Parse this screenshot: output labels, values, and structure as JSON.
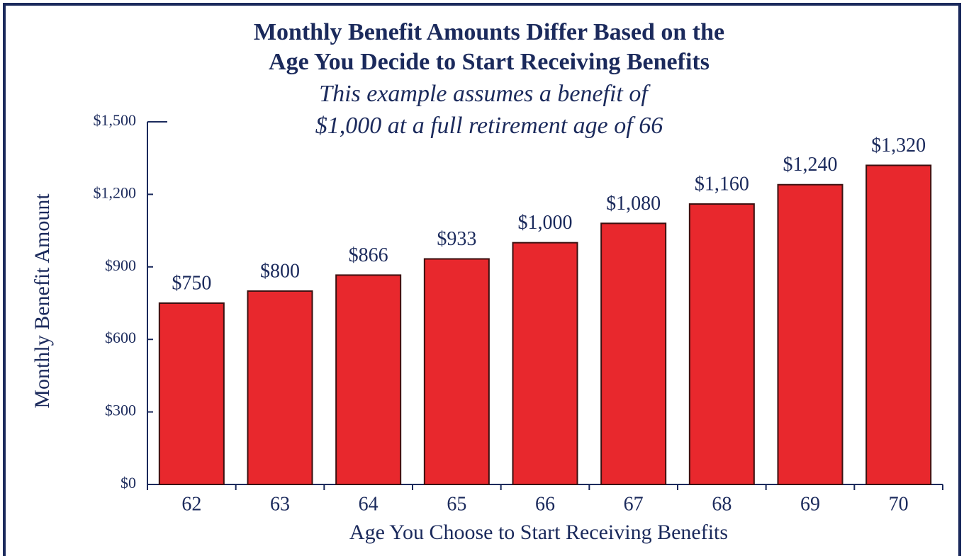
{
  "chart_data": {
    "type": "bar",
    "title": [
      "Monthly Benefit Amounts Differ Based on the",
      "Age You Decide to Start Receiving Benefits"
    ],
    "subtitle": [
      "This example assumes a benefit of",
      "$1,000 at a full retirement age of 66"
    ],
    "x_label": "Age You Choose to Start Receiving Benefits",
    "y_label": "Monthly Benefit Amount",
    "categories": [
      "62",
      "63",
      "64",
      "65",
      "66",
      "67",
      "68",
      "69",
      "70"
    ],
    "values": [
      750,
      800,
      866,
      933,
      1000,
      1080,
      1160,
      1240,
      1320
    ],
    "value_labels": [
      "$750",
      "$800",
      "$866",
      "$933",
      "$1,000",
      "$1,080",
      "$1,160",
      "$1,240",
      "$1,320"
    ],
    "color": "#e8282d",
    "ylim": [
      0,
      1500
    ],
    "yticks": [
      {
        "value": 0,
        "label": "$0"
      },
      {
        "value": 300,
        "label": "$300"
      },
      {
        "value": 600,
        "label": "$600"
      },
      {
        "value": 900,
        "label": "$900"
      },
      {
        "value": 1200,
        "label": "$1,200"
      },
      {
        "value": 1500,
        "label": "$1,500"
      }
    ]
  }
}
